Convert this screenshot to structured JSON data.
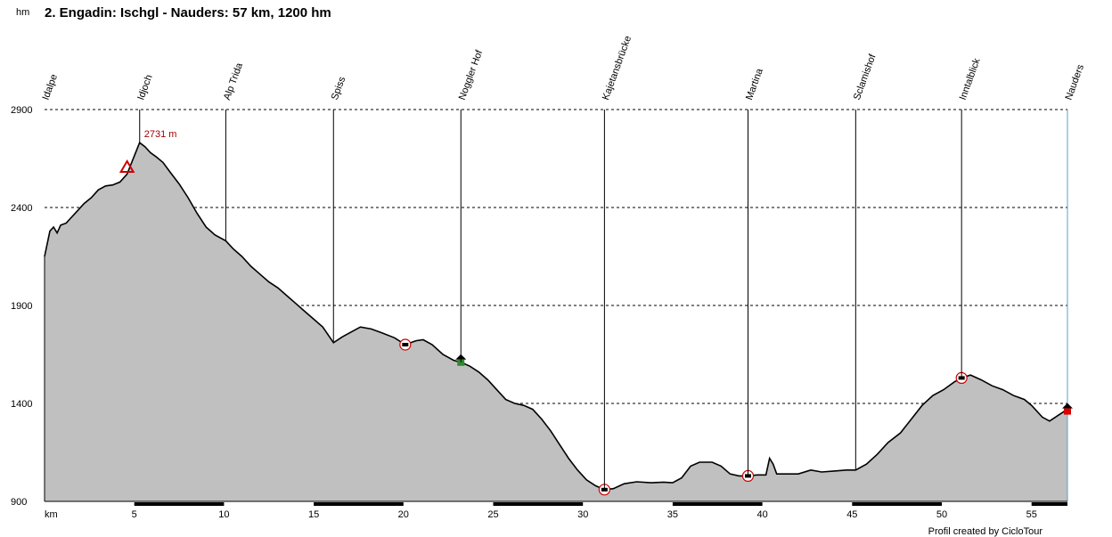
{
  "chart_data": {
    "type": "area",
    "title": "2. Engadin: Ischgl - Nauders: 57 km, 1200 hm",
    "ylabel": "hm",
    "xlabel": "km",
    "ylim": [
      900,
      2900
    ],
    "xlim": [
      0,
      57
    ],
    "yticks": [
      900,
      1400,
      1900,
      2400,
      2900
    ],
    "xticks": [
      5,
      10,
      15,
      20,
      25,
      30,
      35,
      40,
      45,
      50,
      55
    ],
    "grid": true,
    "peak_label": "2731 m",
    "credit": "Profil created by CicloTour",
    "colors": {
      "fill": "#c0c0c0",
      "line": "#000000",
      "grid": "#000000",
      "peak": "#a00000"
    },
    "waypoints": [
      {
        "name": "Idalpe",
        "km": 0
      },
      {
        "name": "Idjoch",
        "km": 5.3
      },
      {
        "name": "Alp Trida",
        "km": 10.1
      },
      {
        "name": "Spiss",
        "km": 16.1
      },
      {
        "name": "Noggler Hof",
        "km": 23.2
      },
      {
        "name": "Kajetansbrücke",
        "km": 31.2
      },
      {
        "name": "Martina",
        "km": 39.2
      },
      {
        "name": "Sclamishof",
        "km": 45.2
      },
      {
        "name": "Inntalblick",
        "km": 51.1
      },
      {
        "name": "Nauders",
        "km": 57.0
      }
    ],
    "profile": [
      [
        0,
        2150
      ],
      [
        0.3,
        2280
      ],
      [
        0.5,
        2300
      ],
      [
        0.7,
        2270
      ],
      [
        0.9,
        2310
      ],
      [
        1.2,
        2320
      ],
      [
        1.5,
        2350
      ],
      [
        1.8,
        2380
      ],
      [
        2.2,
        2420
      ],
      [
        2.6,
        2450
      ],
      [
        3.0,
        2490
      ],
      [
        3.4,
        2510
      ],
      [
        3.8,
        2515
      ],
      [
        4.2,
        2530
      ],
      [
        4.6,
        2570
      ],
      [
        4.9,
        2640
      ],
      [
        5.3,
        2731
      ],
      [
        5.6,
        2710
      ],
      [
        5.9,
        2680
      ],
      [
        6.2,
        2660
      ],
      [
        6.6,
        2630
      ],
      [
        7.0,
        2580
      ],
      [
        7.5,
        2520
      ],
      [
        8.0,
        2450
      ],
      [
        8.5,
        2370
      ],
      [
        9.0,
        2300
      ],
      [
        9.5,
        2260
      ],
      [
        10.1,
        2230
      ],
      [
        10.5,
        2190
      ],
      [
        11.0,
        2150
      ],
      [
        11.5,
        2100
      ],
      [
        12.0,
        2060
      ],
      [
        12.5,
        2020
      ],
      [
        13.0,
        1990
      ],
      [
        13.5,
        1950
      ],
      [
        14.0,
        1910
      ],
      [
        14.5,
        1870
      ],
      [
        15.0,
        1830
      ],
      [
        15.5,
        1790
      ],
      [
        16.1,
        1710
      ],
      [
        16.6,
        1740
      ],
      [
        17.2,
        1770
      ],
      [
        17.6,
        1790
      ],
      [
        18.2,
        1780
      ],
      [
        18.8,
        1760
      ],
      [
        19.5,
        1735
      ],
      [
        20.1,
        1700
      ],
      [
        20.7,
        1720
      ],
      [
        21.1,
        1725
      ],
      [
        21.6,
        1700
      ],
      [
        22.2,
        1650
      ],
      [
        22.8,
        1620
      ],
      [
        23.2,
        1610
      ],
      [
        23.7,
        1590
      ],
      [
        24.2,
        1560
      ],
      [
        24.7,
        1520
      ],
      [
        25.2,
        1470
      ],
      [
        25.7,
        1420
      ],
      [
        26.2,
        1400
      ],
      [
        26.7,
        1390
      ],
      [
        27.2,
        1370
      ],
      [
        27.7,
        1320
      ],
      [
        28.2,
        1260
      ],
      [
        28.7,
        1190
      ],
      [
        29.2,
        1120
      ],
      [
        29.7,
        1060
      ],
      [
        30.2,
        1010
      ],
      [
        30.7,
        980
      ],
      [
        31.2,
        960
      ],
      [
        31.7,
        965
      ],
      [
        32.3,
        990
      ],
      [
        33.0,
        1000
      ],
      [
        33.8,
        995
      ],
      [
        34.5,
        998
      ],
      [
        35.0,
        995
      ],
      [
        35.5,
        1020
      ],
      [
        36.0,
        1080
      ],
      [
        36.5,
        1100
      ],
      [
        37.2,
        1100
      ],
      [
        37.7,
        1080
      ],
      [
        38.2,
        1040
      ],
      [
        38.7,
        1030
      ],
      [
        39.2,
        1030
      ],
      [
        39.7,
        1035
      ],
      [
        40.2,
        1035
      ],
      [
        40.4,
        1120
      ],
      [
        40.6,
        1090
      ],
      [
        40.8,
        1040
      ],
      [
        41.3,
        1040
      ],
      [
        42.0,
        1040
      ],
      [
        42.7,
        1060
      ],
      [
        43.3,
        1050
      ],
      [
        44.0,
        1055
      ],
      [
        44.7,
        1060
      ],
      [
        45.2,
        1060
      ],
      [
        45.8,
        1090
      ],
      [
        46.4,
        1140
      ],
      [
        47.0,
        1200
      ],
      [
        47.7,
        1250
      ],
      [
        48.3,
        1320
      ],
      [
        48.9,
        1390
      ],
      [
        49.5,
        1440
      ],
      [
        50.1,
        1470
      ],
      [
        50.7,
        1510
      ],
      [
        51.1,
        1530
      ],
      [
        51.6,
        1545
      ],
      [
        52.2,
        1520
      ],
      [
        52.8,
        1490
      ],
      [
        53.4,
        1470
      ],
      [
        54.0,
        1440
      ],
      [
        54.6,
        1420
      ],
      [
        55.0,
        1390
      ],
      [
        55.6,
        1330
      ],
      [
        56.0,
        1310
      ],
      [
        56.5,
        1340
      ],
      [
        57.0,
        1370
      ]
    ]
  }
}
